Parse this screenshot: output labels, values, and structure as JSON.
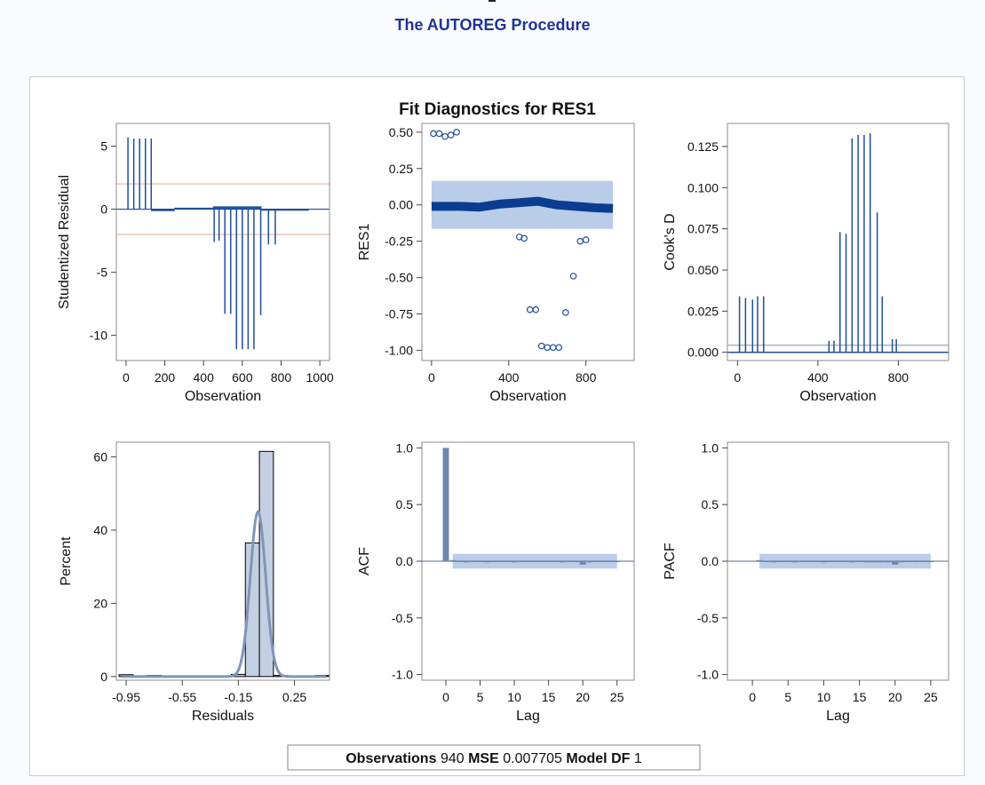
{
  "header": {
    "procedure_title": "The AUTOREG Procedure"
  },
  "figure": {
    "title": "Fit Diagnostics for RES1",
    "footer": [
      {
        "label": "Observations",
        "value": "940"
      },
      {
        "label": "MSE",
        "value": "0.007705"
      },
      {
        "label": "Model DF",
        "value": "1"
      }
    ]
  },
  "colors": {
    "title": "#1f3594",
    "needle": "#1f4e9e",
    "band": "#b9cde8",
    "ref_line": "#e8c9b9",
    "bar_fill": "#c3cfe2",
    "kde": "#7f96b8",
    "acf_bar": "#6e88ad"
  },
  "chart_data": [
    {
      "id": "studentized",
      "type": "needle",
      "xlabel": "Observation",
      "ylabel": "Studentized Residual",
      "xlim": [
        -50,
        1050
      ],
      "ylim": [
        -12,
        6.8
      ],
      "xticks": [
        0,
        200,
        400,
        600,
        800,
        1000
      ],
      "xtick_labels": [
        "0",
        "200",
        "400",
        "600",
        "800",
        "1000"
      ],
      "yticks": [
        5,
        0,
        -5,
        -10
      ],
      "ytick_labels": [
        "5",
        "0",
        "-5",
        "-10"
      ],
      "reference_lines": [
        2,
        -2
      ],
      "spikes": [
        {
          "x": 10,
          "y": 5.7
        },
        {
          "x": 40,
          "y": 5.6
        },
        {
          "x": 70,
          "y": 5.6
        },
        {
          "x": 100,
          "y": 5.6
        },
        {
          "x": 130,
          "y": 5.6
        },
        {
          "x": 455,
          "y": -2.6
        },
        {
          "x": 480,
          "y": -2.5
        },
        {
          "x": 510,
          "y": -8.3
        },
        {
          "x": 540,
          "y": -8.3
        },
        {
          "x": 570,
          "y": -11.1
        },
        {
          "x": 600,
          "y": -11.1
        },
        {
          "x": 630,
          "y": -11.1
        },
        {
          "x": 660,
          "y": -11.1
        },
        {
          "x": 695,
          "y": -8.4
        },
        {
          "x": 735,
          "y": -2.8
        },
        {
          "x": 770,
          "y": -2.8
        }
      ]
    },
    {
      "id": "residuals",
      "type": "scatter",
      "xlabel": "Observation",
      "ylabel": "RES1",
      "xlim": [
        -50,
        1050
      ],
      "ylim": [
        -1.07,
        0.56
      ],
      "xticks": [
        0,
        400,
        800
      ],
      "xtick_labels": [
        "0",
        "400",
        "800"
      ],
      "yticks": [
        0.5,
        0.25,
        0,
        -0.25,
        -0.5,
        -0.75,
        -1
      ],
      "ytick_labels": [
        "0.50",
        "0.25",
        "0.00",
        "-0.25",
        "-0.50",
        "-0.75",
        "-1.00"
      ],
      "band": {
        "x": [
          0,
          940
        ],
        "y": [
          -0.165,
          0.165
        ]
      },
      "outliers": [
        {
          "x": 10,
          "y": 0.49
        },
        {
          "x": 40,
          "y": 0.49
        },
        {
          "x": 70,
          "y": 0.47
        },
        {
          "x": 100,
          "y": 0.48
        },
        {
          "x": 130,
          "y": 0.5
        },
        {
          "x": 455,
          "y": -0.22
        },
        {
          "x": 480,
          "y": -0.23
        },
        {
          "x": 510,
          "y": -0.72
        },
        {
          "x": 540,
          "y": -0.72
        },
        {
          "x": 570,
          "y": -0.97
        },
        {
          "x": 600,
          "y": -0.98
        },
        {
          "x": 630,
          "y": -0.98
        },
        {
          "x": 660,
          "y": -0.98
        },
        {
          "x": 695,
          "y": -0.74
        },
        {
          "x": 735,
          "y": -0.49
        },
        {
          "x": 770,
          "y": -0.25
        },
        {
          "x": 800,
          "y": -0.24
        }
      ],
      "trend": [
        {
          "x": 0,
          "y": -0.01
        },
        {
          "x": 150,
          "y": -0.01
        },
        {
          "x": 250,
          "y": -0.015
        },
        {
          "x": 350,
          "y": 0.005
        },
        {
          "x": 450,
          "y": 0.015
        },
        {
          "x": 550,
          "y": 0.025
        },
        {
          "x": 650,
          "y": 0.0
        },
        {
          "x": 750,
          "y": -0.01
        },
        {
          "x": 850,
          "y": -0.02
        },
        {
          "x": 940,
          "y": -0.025
        }
      ]
    },
    {
      "id": "cooks_d",
      "type": "needle",
      "xlabel": "Observation",
      "ylabel": "Cook's D",
      "xlim": [
        -50,
        1050
      ],
      "ylim": [
        -0.005,
        0.139
      ],
      "xticks": [
        0,
        400,
        800
      ],
      "xtick_labels": [
        "0",
        "400",
        "800"
      ],
      "yticks": [
        0.125,
        0.1,
        0.075,
        0.05,
        0.025,
        0
      ],
      "ytick_labels": [
        "0.125",
        "0.100",
        "0.075",
        "0.050",
        "0.025",
        "0.000"
      ],
      "reference_lines": [
        0.0043
      ],
      "spikes": [
        {
          "x": 10,
          "y": 0.034
        },
        {
          "x": 40,
          "y": 0.033
        },
        {
          "x": 75,
          "y": 0.032
        },
        {
          "x": 100,
          "y": 0.034
        },
        {
          "x": 130,
          "y": 0.034
        },
        {
          "x": 455,
          "y": 0.007
        },
        {
          "x": 480,
          "y": 0.007
        },
        {
          "x": 510,
          "y": 0.073
        },
        {
          "x": 540,
          "y": 0.072
        },
        {
          "x": 570,
          "y": 0.13
        },
        {
          "x": 600,
          "y": 0.132
        },
        {
          "x": 630,
          "y": 0.132
        },
        {
          "x": 660,
          "y": 0.133
        },
        {
          "x": 695,
          "y": 0.085
        },
        {
          "x": 720,
          "y": 0.034
        },
        {
          "x": 770,
          "y": 0.008
        },
        {
          "x": 790,
          "y": 0.008
        }
      ]
    },
    {
      "id": "histogram",
      "type": "bar",
      "xlabel": "Residuals",
      "ylabel": "Percent",
      "xlim": [
        -1.02,
        0.5
      ],
      "ylim": [
        -1,
        64
      ],
      "xticks": [
        -0.95,
        -0.55,
        -0.15,
        0.25
      ],
      "xtick_labels": [
        "-0.95",
        "-0.55",
        "-0.15",
        "0.25"
      ],
      "yticks": [
        0,
        20,
        40,
        60
      ],
      "ytick_labels": [
        "0",
        "20",
        "40",
        "60"
      ],
      "bins": [
        {
          "x0": -1.0,
          "x1": -0.9,
          "y": 0.5
        },
        {
          "x0": -0.9,
          "x1": -0.8,
          "y": 0.0
        },
        {
          "x0": -0.8,
          "x1": -0.7,
          "y": 0.3
        },
        {
          "x0": -0.7,
          "x1": -0.6,
          "y": 0.0
        },
        {
          "x0": -0.6,
          "x1": -0.5,
          "y": 0.0
        },
        {
          "x0": -0.5,
          "x1": -0.4,
          "y": 0.0
        },
        {
          "x0": -0.4,
          "x1": -0.3,
          "y": 0.0
        },
        {
          "x0": -0.3,
          "x1": -0.2,
          "y": 0.0
        },
        {
          "x0": -0.2,
          "x1": -0.1,
          "y": 0.6
        },
        {
          "x0": -0.1,
          "x1": 0.0,
          "y": 36.5
        },
        {
          "x0": 0.0,
          "x1": 0.1,
          "y": 61.5
        },
        {
          "x0": 0.1,
          "x1": 0.2,
          "y": 0.3
        },
        {
          "x0": 0.2,
          "x1": 0.3,
          "y": 0.0
        },
        {
          "x0": 0.3,
          "x1": 0.4,
          "y": 0.0
        },
        {
          "x0": 0.4,
          "x1": 0.5,
          "y": 0.3
        }
      ],
      "kde": {
        "mean": -0.01,
        "sd": 0.055,
        "peak": 45
      }
    },
    {
      "id": "acf",
      "type": "bar",
      "xlabel": "Lag",
      "ylabel": "ACF",
      "xlim": [
        -3.5,
        27.5
      ],
      "ylim": [
        -1.05,
        1.05
      ],
      "xticks": [
        0,
        5,
        10,
        15,
        20,
        25
      ],
      "xtick_labels": [
        "0",
        "5",
        "10",
        "15",
        "20",
        "25"
      ],
      "yticks": [
        1,
        0.5,
        0,
        -0.5,
        -1
      ],
      "ytick_labels": [
        "1.0",
        "0.5",
        "0.0",
        "-0.5",
        "-1.0"
      ],
      "band": {
        "x": [
          1,
          25
        ],
        "y": [
          -0.065,
          0.065
        ]
      },
      "lags": [
        0,
        1,
        2,
        3,
        4,
        5,
        6,
        7,
        8,
        9,
        10,
        11,
        12,
        13,
        14,
        15,
        16,
        17,
        18,
        19,
        20,
        21,
        22,
        23,
        24,
        25
      ],
      "values": [
        1.0,
        0.01,
        0.0,
        -0.01,
        0.0,
        0.0,
        -0.01,
        0.0,
        0.0,
        0.0,
        -0.01,
        0.0,
        0.0,
        0.0,
        0.0,
        0.0,
        0.0,
        -0.01,
        0.0,
        0.0,
        -0.03,
        -0.01,
        0.0,
        0.0,
        0.0,
        0.0
      ]
    },
    {
      "id": "pacf",
      "type": "bar",
      "xlabel": "Lag",
      "ylabel": "PACF",
      "xlim": [
        -3.5,
        27.5
      ],
      "ylim": [
        -1.05,
        1.05
      ],
      "xticks": [
        0,
        5,
        10,
        15,
        20,
        25
      ],
      "xtick_labels": [
        "0",
        "5",
        "10",
        "15",
        "20",
        "25"
      ],
      "yticks": [
        1,
        0.5,
        0,
        -0.5,
        -1
      ],
      "ytick_labels": [
        "1.0",
        "0.5",
        "0.0",
        "-0.5",
        "-1.0"
      ],
      "band": {
        "x": [
          1,
          25
        ],
        "y": [
          -0.065,
          0.065
        ]
      },
      "lags": [
        1,
        2,
        3,
        4,
        5,
        6,
        7,
        8,
        9,
        10,
        11,
        12,
        13,
        14,
        15,
        16,
        17,
        18,
        19,
        20,
        21,
        22,
        23,
        24,
        25
      ],
      "values": [
        0.01,
        0.0,
        -0.01,
        0.0,
        0.0,
        -0.01,
        0.0,
        0.0,
        0.0,
        -0.01,
        0.0,
        0.0,
        0.0,
        -0.01,
        0.0,
        -0.01,
        -0.01,
        -0.01,
        -0.01,
        -0.03,
        -0.01,
        0.0,
        0.0,
        0.0,
        0.0
      ]
    }
  ]
}
